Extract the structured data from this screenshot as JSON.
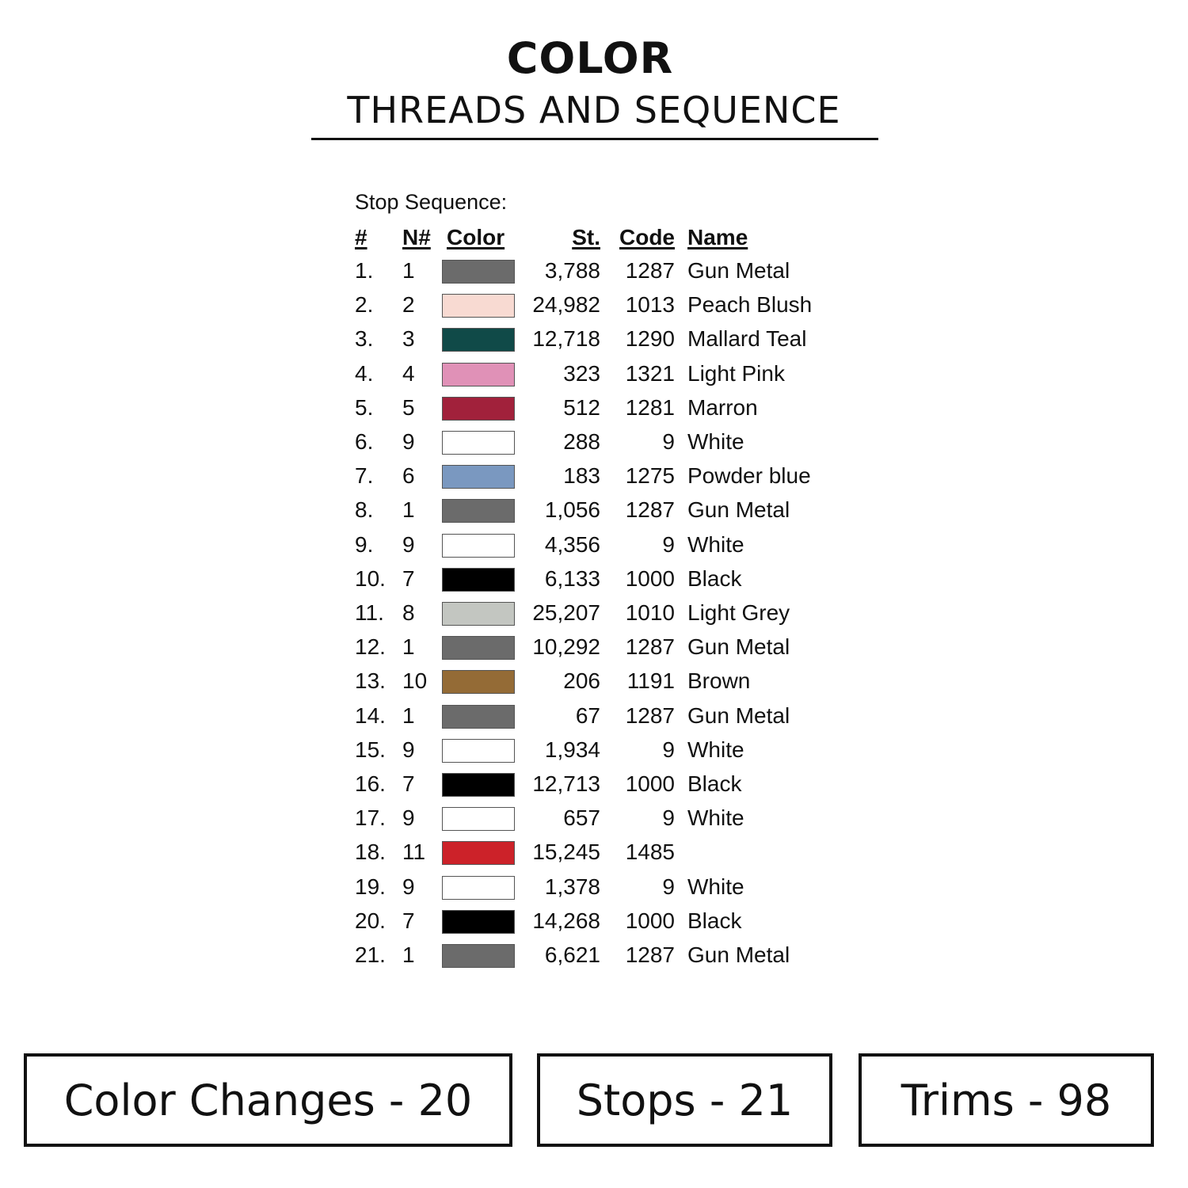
{
  "header": {
    "title": "COLOR",
    "subtitle": "THREADS AND SEQUENCE"
  },
  "sequence": {
    "label": "Stop Sequence:",
    "columns": [
      "#",
      "N#",
      "Color",
      "St.",
      "Code",
      "Name"
    ],
    "rows": [
      {
        "idx": "1.",
        "n": "1",
        "color": "#6b6b6b",
        "st": "3,788",
        "code": "1287",
        "name": "Gun Metal"
      },
      {
        "idx": "2.",
        "n": "2",
        "color": "#f8dad2",
        "st": "24,982",
        "code": "1013",
        "name": "Peach Blush"
      },
      {
        "idx": "3.",
        "n": "3",
        "color": "#104a48",
        "st": "12,718",
        "code": "1290",
        "name": "Mallard Teal"
      },
      {
        "idx": "4.",
        "n": "4",
        "color": "#e091b7",
        "st": "323",
        "code": "1321",
        "name": "Light Pink"
      },
      {
        "idx": "5.",
        "n": "5",
        "color": "#a1213b",
        "st": "512",
        "code": "1281",
        "name": "Marron"
      },
      {
        "idx": "6.",
        "n": "9",
        "color": "#ffffff",
        "st": "288",
        "code": "9",
        "name": "White"
      },
      {
        "idx": "7.",
        "n": "6",
        "color": "#7a98c0",
        "st": "183",
        "code": "1275",
        "name": "Powder blue"
      },
      {
        "idx": "8.",
        "n": "1",
        "color": "#6b6b6b",
        "st": "1,056",
        "code": "1287",
        "name": "Gun Metal"
      },
      {
        "idx": "9.",
        "n": "9",
        "color": "#ffffff",
        "st": "4,356",
        "code": "9",
        "name": "White"
      },
      {
        "idx": "10.",
        "n": "7",
        "color": "#000000",
        "st": "6,133",
        "code": "1000",
        "name": "Black"
      },
      {
        "idx": "11.",
        "n": "8",
        "color": "#c3c6c1",
        "st": "25,207",
        "code": "1010",
        "name": "Light Grey"
      },
      {
        "idx": "12.",
        "n": "1",
        "color": "#6b6b6b",
        "st": "10,292",
        "code": "1287",
        "name": "Gun Metal"
      },
      {
        "idx": "13.",
        "n": "10",
        "color": "#946b36",
        "st": "206",
        "code": "1191",
        "name": "Brown"
      },
      {
        "idx": "14.",
        "n": "1",
        "color": "#6b6b6b",
        "st": "67",
        "code": "1287",
        "name": "Gun Metal"
      },
      {
        "idx": "15.",
        "n": "9",
        "color": "#ffffff",
        "st": "1,934",
        "code": "9",
        "name": "White"
      },
      {
        "idx": "16.",
        "n": "7",
        "color": "#000000",
        "st": "12,713",
        "code": "1000",
        "name": "Black"
      },
      {
        "idx": "17.",
        "n": "9",
        "color": "#ffffff",
        "st": "657",
        "code": "9",
        "name": "White"
      },
      {
        "idx": "18.",
        "n": "11",
        "color": "#cc2229",
        "st": "15,245",
        "code": "1485",
        "name": ""
      },
      {
        "idx": "19.",
        "n": "9",
        "color": "#ffffff",
        "st": "1,378",
        "code": "9",
        "name": "White"
      },
      {
        "idx": "20.",
        "n": "7",
        "color": "#000000",
        "st": "14,268",
        "code": "1000",
        "name": "Black"
      },
      {
        "idx": "21.",
        "n": "1",
        "color": "#6b6b6b",
        "st": "6,621",
        "code": "1287",
        "name": "Gun Metal"
      }
    ]
  },
  "summary": {
    "color_changes": "Color Changes - 20",
    "stops": "Stops - 21",
    "trims": "Trims - 98"
  }
}
